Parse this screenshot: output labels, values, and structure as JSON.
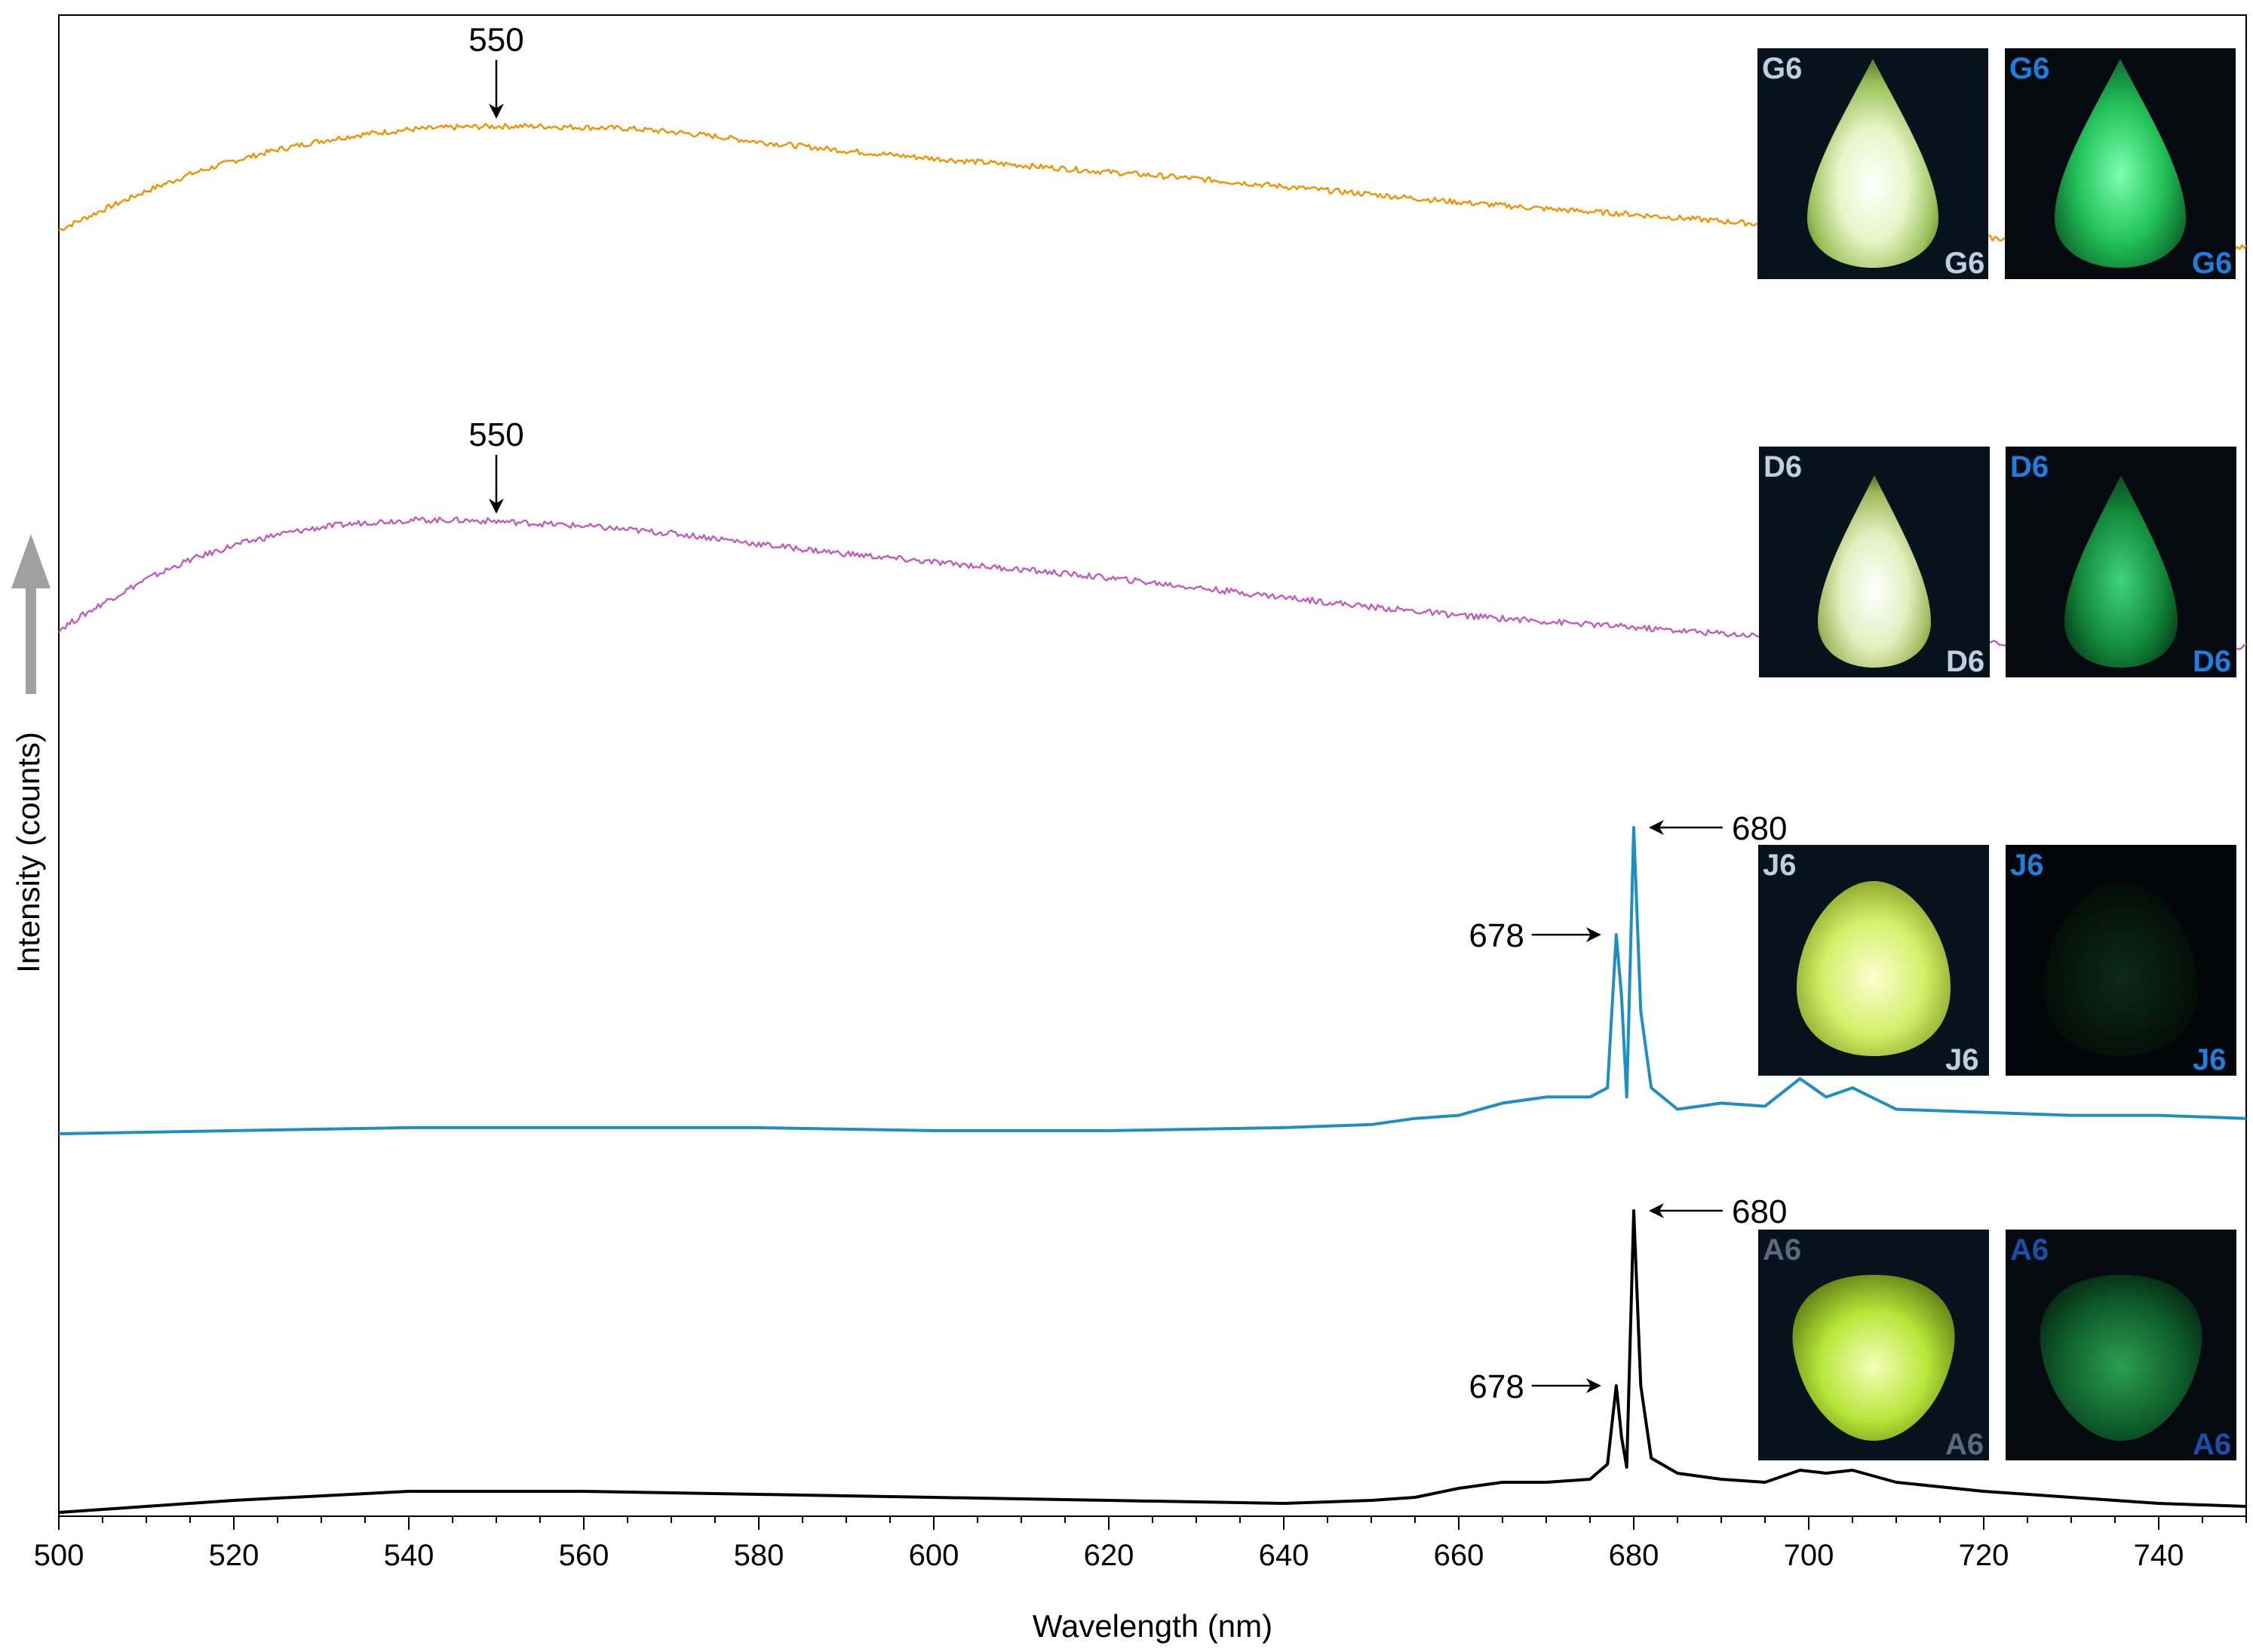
{
  "chart_data": {
    "type": "line",
    "title": "",
    "xlabel": "Wavelength (nm)",
    "ylabel": "Intensity (counts)",
    "xlim": [
      500,
      750
    ],
    "xticks": [
      "500",
      "520",
      "540",
      "560",
      "580",
      "600",
      "620",
      "640",
      "660",
      "680",
      "700",
      "720",
      "740"
    ],
    "y_axis": "arbitrary offset units, stacked spectra, no tick values",
    "grid": false,
    "series": [
      {
        "color": "#f39200",
        "sample_photos": [
          "G6",
          "G6"
        ],
        "x": [
          500,
          505,
          510,
          515,
          520,
          525,
          530,
          535,
          540,
          545,
          550,
          555,
          560,
          565,
          570,
          575,
          580,
          590,
          600,
          610,
          620,
          630,
          640,
          650,
          660,
          670,
          680,
          690,
          700,
          710,
          720,
          730,
          740,
          750
        ],
        "y": [
          0.0,
          0.18,
          0.35,
          0.5,
          0.62,
          0.72,
          0.8,
          0.86,
          0.9,
          0.92,
          0.93,
          0.93,
          0.92,
          0.91,
          0.88,
          0.84,
          0.79,
          0.71,
          0.64,
          0.58,
          0.52,
          0.46,
          0.39,
          0.32,
          0.25,
          0.19,
          0.14,
          0.08,
          0.02,
          -0.02,
          -0.07,
          -0.11,
          -0.14,
          -0.16
        ]
      },
      {
        "color": "#c05cbf",
        "sample_photos": [
          "D6",
          "D6"
        ],
        "x": [
          500,
          505,
          510,
          515,
          520,
          525,
          530,
          535,
          540,
          545,
          550,
          555,
          560,
          565,
          570,
          575,
          580,
          590,
          600,
          610,
          620,
          630,
          640,
          650,
          660,
          670,
          680,
          690,
          700,
          710,
          720,
          730,
          740,
          750
        ],
        "y": [
          0.0,
          0.22,
          0.42,
          0.58,
          0.7,
          0.79,
          0.85,
          0.89,
          0.91,
          0.91,
          0.9,
          0.88,
          0.86,
          0.83,
          0.8,
          0.76,
          0.71,
          0.63,
          0.56,
          0.5,
          0.43,
          0.35,
          0.27,
          0.19,
          0.12,
          0.07,
          0.02,
          -0.03,
          -0.07,
          -0.09,
          -0.11,
          -0.12,
          -0.13,
          -0.14
        ]
      },
      {
        "color": "#1d8fc4",
        "sample_photos": [
          "J6",
          "J6"
        ],
        "x": [
          500,
          520,
          540,
          560,
          580,
          600,
          620,
          640,
          650,
          655,
          660,
          665,
          670,
          675,
          677,
          678,
          678.6,
          679.2,
          680,
          680.8,
          682,
          685,
          690,
          695,
          699,
          702,
          705,
          710,
          720,
          730,
          740,
          750
        ],
        "y": [
          0.0,
          0.01,
          0.02,
          0.02,
          0.02,
          0.01,
          0.01,
          0.02,
          0.03,
          0.05,
          0.06,
          0.1,
          0.12,
          0.12,
          0.15,
          0.65,
          0.45,
          0.12,
          1.0,
          0.4,
          0.15,
          0.08,
          0.1,
          0.09,
          0.18,
          0.12,
          0.15,
          0.08,
          0.07,
          0.06,
          0.06,
          0.05
        ]
      },
      {
        "color": "#000000",
        "sample_photos": [
          "A6",
          "A6"
        ],
        "x": [
          500,
          520,
          540,
          560,
          580,
          600,
          620,
          640,
          650,
          655,
          660,
          665,
          670,
          675,
          677,
          678,
          678.6,
          679.2,
          680,
          680.8,
          682,
          685,
          690,
          695,
          699,
          702,
          705,
          710,
          720,
          730,
          740,
          750
        ],
        "y": [
          0.0,
          0.04,
          0.07,
          0.07,
          0.06,
          0.05,
          0.04,
          0.03,
          0.04,
          0.05,
          0.08,
          0.1,
          0.1,
          0.11,
          0.16,
          0.42,
          0.25,
          0.15,
          1.0,
          0.42,
          0.18,
          0.13,
          0.11,
          0.1,
          0.14,
          0.13,
          0.14,
          0.1,
          0.07,
          0.05,
          0.03,
          0.02
        ]
      }
    ],
    "annotations": [
      {
        "text": "550",
        "series": 0,
        "x": 550,
        "arrow": "down"
      },
      {
        "text": "550",
        "series": 1,
        "x": 550,
        "arrow": "down"
      },
      {
        "text": "680",
        "series": 2,
        "x": 680,
        "arrow": "left"
      },
      {
        "text": "678",
        "series": 2,
        "x": 678,
        "arrow": "right"
      },
      {
        "text": "680",
        "series": 3,
        "x": 680,
        "arrow": "left"
      },
      {
        "text": "678",
        "series": 3,
        "x": 678,
        "arrow": "right"
      }
    ]
  }
}
